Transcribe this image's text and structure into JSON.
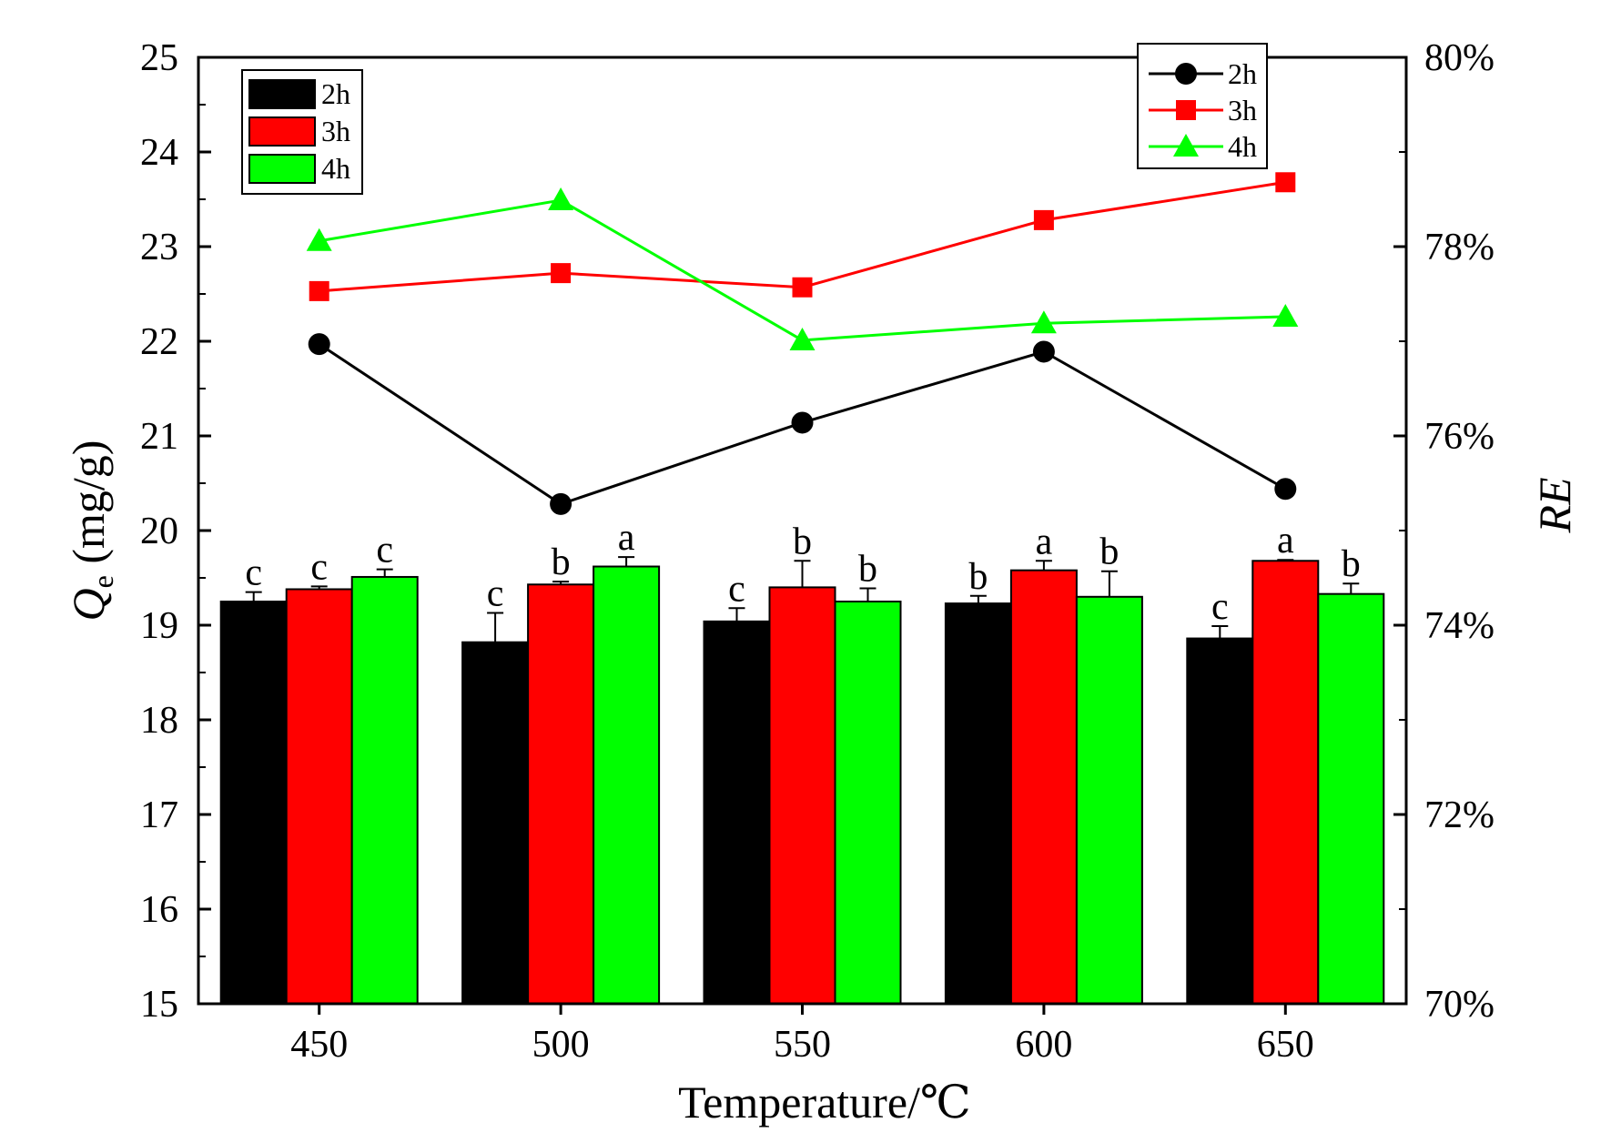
{
  "chart_data": {
    "type": "bar+line",
    "categories": [
      "450",
      "500",
      "550",
      "600",
      "650"
    ],
    "xlabel": "Temperature/℃",
    "ylabel_left": {
      "symbol": "Q",
      "subscript": "e",
      "units": " (mg/g)"
    },
    "ylabel_right": "RE",
    "ylim_left": [
      15,
      25
    ],
    "ylim_right": [
      0.7,
      0.8
    ],
    "yticks_left": [
      "15",
      "16",
      "17",
      "18",
      "19",
      "20",
      "21",
      "22",
      "23",
      "24",
      "25"
    ],
    "yticks_right": [
      "70%",
      "72%",
      "74%",
      "76%",
      "78%",
      "80%"
    ],
    "bar_series": [
      {
        "name": "2h",
        "color": "#000000",
        "values": [
          19.25,
          18.82,
          19.04,
          19.23,
          18.86
        ],
        "errors": [
          0.1,
          0.31,
          0.14,
          0.08,
          0.13
        ],
        "labels": [
          "c",
          "c",
          "c",
          "b",
          "c"
        ]
      },
      {
        "name": "3h",
        "color": "#ff0000",
        "values": [
          19.38,
          19.43,
          19.4,
          19.58,
          19.68
        ],
        "errors": [
          0.03,
          0.03,
          0.28,
          0.1,
          0.01
        ],
        "labels": [
          "c",
          "b",
          "b",
          "a",
          "a"
        ]
      },
      {
        "name": "4h",
        "color": "#00ff00",
        "values": [
          19.51,
          19.62,
          19.25,
          19.3,
          19.33
        ],
        "errors": [
          0.08,
          0.1,
          0.14,
          0.27,
          0.11
        ],
        "labels": [
          "c",
          "a",
          "b",
          "b",
          "b"
        ]
      }
    ],
    "line_series": [
      {
        "name": "2h",
        "color": "#000000",
        "marker": "circle",
        "values": [
          0.7697,
          0.7528,
          0.7614,
          0.7689,
          0.7544
        ]
      },
      {
        "name": "3h",
        "color": "#ff0000",
        "marker": "square",
        "values": [
          0.7753,
          0.7772,
          0.7757,
          0.7828,
          0.7868
        ]
      },
      {
        "name": "4h",
        "color": "#00ff00",
        "marker": "triangle",
        "values": [
          0.7806,
          0.7849,
          0.7701,
          0.7719,
          0.7726
        ]
      }
    ],
    "bar_legend_position": "top-left",
    "line_legend_position": "top-right"
  }
}
